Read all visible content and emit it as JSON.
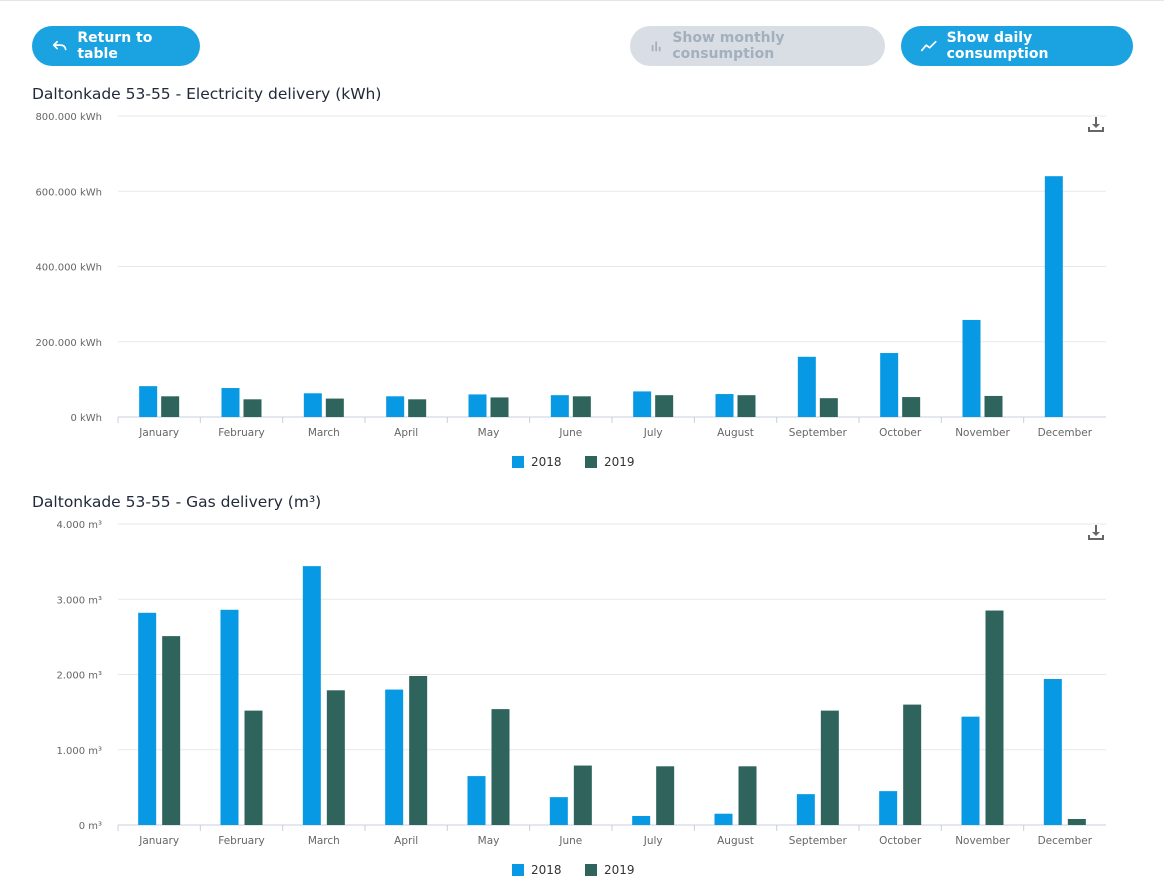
{
  "toolbar": {
    "return_label": "Return to table",
    "monthly_label": "Show monthly consumption",
    "daily_label": "Show daily consumption"
  },
  "colors": {
    "s2018": "#0799e3",
    "s2019": "#2e645c",
    "accent": "#1aa3e0"
  },
  "chart_data": [
    {
      "type": "bar",
      "title": "Daltonkade 53-55 - Electricity delivery (kWh)",
      "categories": [
        "January",
        "February",
        "March",
        "April",
        "May",
        "June",
        "July",
        "August",
        "September",
        "October",
        "November",
        "December"
      ],
      "y_ticks": [
        0,
        200000,
        400000,
        600000,
        800000
      ],
      "y_tick_labels": [
        "0 kWh",
        "200.000 kWh",
        "400.000 kWh",
        "600.000 kWh",
        "800.000 kWh"
      ],
      "ylim": [
        0,
        800000
      ],
      "series": [
        {
          "name": "2018",
          "values": [
            82000,
            77000,
            63000,
            55000,
            60000,
            58000,
            68000,
            61000,
            160000,
            170000,
            258000,
            640000
          ]
        },
        {
          "name": "2019",
          "values": [
            55000,
            47000,
            49000,
            47000,
            52000,
            55000,
            58000,
            58000,
            50000,
            53000,
            56000,
            0
          ]
        }
      ]
    },
    {
      "type": "bar",
      "title": "Daltonkade 53-55 - Gas delivery (m³)",
      "categories": [
        "January",
        "February",
        "March",
        "April",
        "May",
        "June",
        "July",
        "August",
        "September",
        "October",
        "November",
        "December"
      ],
      "y_ticks": [
        0,
        1000,
        2000,
        3000,
        4000
      ],
      "y_tick_labels": [
        "0 m³",
        "1.000 m³",
        "2.000 m³",
        "3.000 m³",
        "4.000 m³"
      ],
      "ylim": [
        0,
        4000
      ],
      "series": [
        {
          "name": "2018",
          "values": [
            2820,
            2860,
            3440,
            1800,
            650,
            370,
            120,
            150,
            410,
            450,
            1440,
            1940
          ]
        },
        {
          "name": "2019",
          "values": [
            2510,
            1520,
            1790,
            1980,
            1540,
            790,
            780,
            780,
            1520,
            1600,
            2850,
            80
          ]
        }
      ]
    }
  ]
}
